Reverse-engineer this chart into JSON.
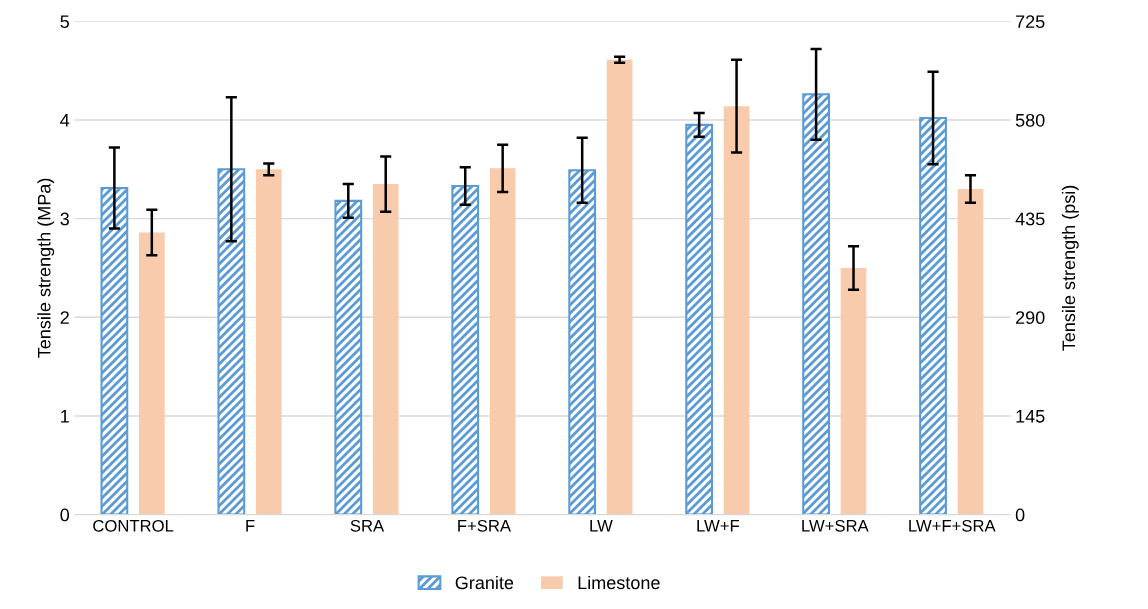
{
  "chart_data": {
    "type": "bar",
    "categories": [
      "CONTROL",
      "F",
      "SRA",
      "F+SRA",
      "LW",
      "LW+F",
      "LW+SRA",
      "LW+F+SRA"
    ],
    "series": [
      {
        "name": "Granite",
        "color": "#5b9bd5",
        "values": [
          3.31,
          3.5,
          3.18,
          3.33,
          3.49,
          3.95,
          4.26,
          4.02
        ],
        "errors": [
          0.41,
          0.73,
          0.17,
          0.19,
          0.33,
          0.12,
          0.46,
          0.47
        ]
      },
      {
        "name": "Limestone",
        "color": "#f8cbad",
        "values": [
          2.86,
          3.5,
          3.35,
          3.51,
          4.61,
          4.14,
          2.5,
          3.3
        ],
        "errors": [
          0.23,
          0.06,
          0.28,
          0.24,
          0.03,
          0.47,
          0.22,
          0.14
        ]
      }
    ],
    "ylabel": "Tensile strength (MPa)",
    "y2label": "Tensile strength (psi)",
    "ylim": [
      0,
      5
    ],
    "yticks": [
      0,
      1,
      2,
      3,
      4,
      5
    ],
    "y2lim": [
      0,
      725
    ],
    "y2ticks": [
      0,
      145,
      290,
      435,
      580,
      725
    ],
    "grid": "y",
    "legend": "bottom"
  }
}
